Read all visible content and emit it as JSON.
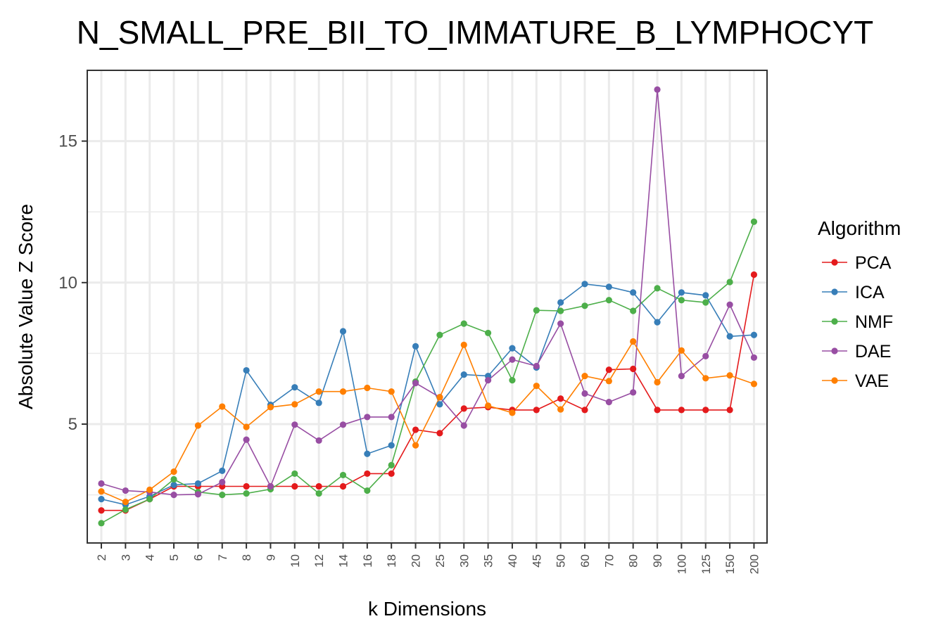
{
  "chart_data": {
    "type": "line",
    "title": "N_SMALL_PRE_BII_TO_IMMATURE_B_LYMPHOCYT",
    "xlabel": "k Dimensions",
    "ylabel": "Absolute Value Z Score",
    "categories": [
      "2",
      "3",
      "4",
      "5",
      "6",
      "7",
      "8",
      "9",
      "10",
      "12",
      "14",
      "16",
      "18",
      "20",
      "25",
      "30",
      "35",
      "40",
      "45",
      "50",
      "60",
      "70",
      "80",
      "90",
      "100",
      "125",
      "150",
      "200"
    ],
    "ylim": [
      0.8,
      17.5
    ],
    "yticks": [
      5,
      10,
      15
    ],
    "grid": true,
    "legend": {
      "title": "Algorithm",
      "position": "right"
    },
    "series": [
      {
        "name": "PCA",
        "color": "#E41A1C",
        "values": [
          1.95,
          1.95,
          2.35,
          2.8,
          2.8,
          2.8,
          2.8,
          2.8,
          2.8,
          2.8,
          2.8,
          3.25,
          3.25,
          4.8,
          4.68,
          5.55,
          5.6,
          5.5,
          5.5,
          5.9,
          5.5,
          6.92,
          6.95,
          5.5,
          5.5,
          5.5,
          5.5,
          10.28
        ]
      },
      {
        "name": "ICA",
        "color": "#377EB8",
        "values": [
          2.35,
          2.15,
          2.45,
          2.85,
          2.9,
          3.35,
          6.9,
          5.68,
          6.3,
          5.75,
          8.28,
          3.95,
          4.25,
          7.75,
          5.7,
          6.75,
          6.7,
          7.68,
          7.0,
          9.3,
          9.95,
          9.85,
          9.65,
          8.6,
          9.65,
          9.55,
          8.1,
          8.15
        ]
      },
      {
        "name": "NMF",
        "color": "#4DAF4A",
        "values": [
          1.5,
          1.98,
          2.35,
          3.05,
          2.6,
          2.5,
          2.55,
          2.7,
          3.25,
          2.55,
          3.2,
          2.65,
          3.55,
          6.5,
          8.15,
          8.55,
          8.22,
          6.55,
          9.02,
          9.0,
          9.18,
          9.38,
          9.0,
          9.8,
          9.38,
          9.3,
          10.02,
          12.15
        ]
      },
      {
        "name": "DAE",
        "color": "#984EA3",
        "values": [
          2.9,
          2.65,
          2.6,
          2.5,
          2.52,
          2.95,
          4.45,
          2.8,
          4.98,
          4.42,
          4.98,
          5.25,
          5.25,
          6.45,
          5.95,
          4.95,
          6.55,
          7.28,
          7.05,
          8.55,
          6.08,
          5.78,
          6.12,
          16.82,
          6.7,
          7.4,
          9.22,
          7.35
        ]
      },
      {
        "name": "VAE",
        "color": "#FF7F00",
        "values": [
          2.62,
          2.25,
          2.68,
          3.32,
          4.95,
          5.62,
          4.9,
          5.6,
          5.7,
          6.15,
          6.15,
          6.28,
          6.15,
          4.25,
          5.95,
          7.8,
          5.65,
          5.4,
          6.35,
          5.52,
          6.7,
          6.52,
          7.92,
          6.48,
          7.6,
          6.62,
          6.72,
          6.42
        ]
      }
    ]
  }
}
